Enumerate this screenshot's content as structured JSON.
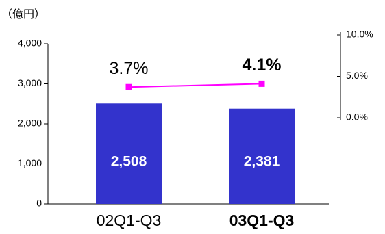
{
  "chart_data": {
    "type": "bar",
    "y_axis_label": "（億円）",
    "categories": [
      "02Q1-Q3",
      "03Q1-Q3"
    ],
    "series": [
      {
        "color": "#3333cc",
        "values": [
          2508,
          2381
        ],
        "value_labels": [
          "2,508",
          "2,381"
        ]
      },
      {
        "type": "line",
        "axis": "y2",
        "color": "#ff00ff",
        "values": [
          3.7,
          4.1
        ],
        "value_labels": [
          "3.7%",
          "4.1%"
        ]
      }
    ],
    "ylim": [
      0,
      4000
    ],
    "yticks": [
      0,
      {
        "value": 1000,
        "label": "1,000"
      },
      {
        "value": 2000,
        "label": "2,000"
      },
      {
        "value": 3000,
        "label": "3,000"
      },
      {
        "value": 4000,
        "label": "4,000"
      }
    ],
    "y2lim": [
      0,
      10
    ],
    "y2ticks": [
      {
        "value": 0,
        "label": "0.0%"
      },
      {
        "value": 5,
        "label": "5.0%"
      },
      {
        "value": 10,
        "label": "10.0%"
      }
    ]
  }
}
